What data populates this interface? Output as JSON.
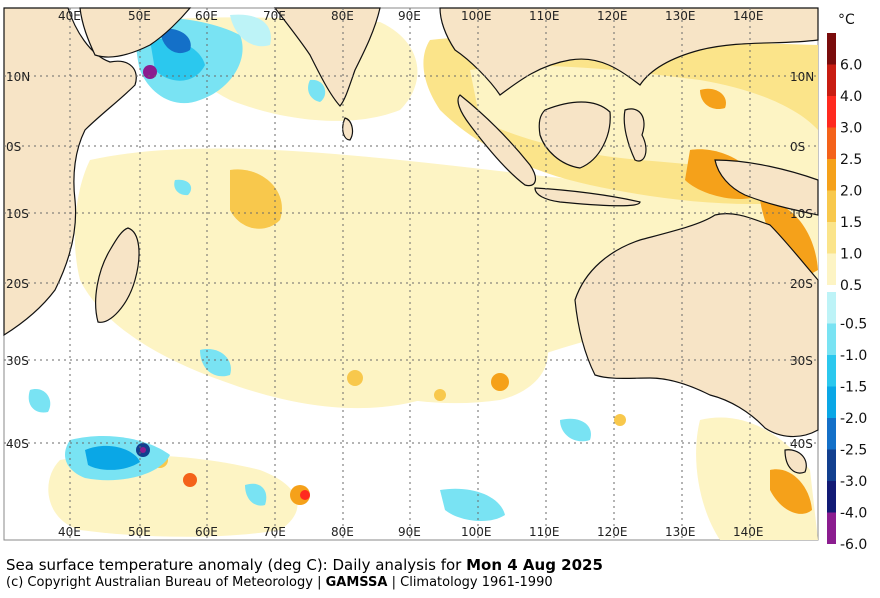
{
  "map": {
    "lon_ticks_top": [
      "40E",
      "50E",
      "60E",
      "70E",
      "80E",
      "90E",
      "100E",
      "110E",
      "120E",
      "130E",
      "140E"
    ],
    "lon_ticks_bottom": [
      "40E",
      "50E",
      "60E",
      "70E",
      "80E",
      "90E",
      "100E",
      "110E",
      "120E",
      "130E",
      "140E"
    ],
    "lat_ticks_left": [
      "10N",
      "0S",
      "10S",
      "20S",
      "30S",
      "40S"
    ],
    "lat_ticks_right": [
      "10N",
      "0S",
      "10S",
      "20S",
      "30S",
      "40S"
    ]
  },
  "colorbar": {
    "unit": "°C",
    "positive": [
      {
        "label": "6.0",
        "color": "#7a0c0c"
      },
      {
        "label": "4.0",
        "color": "#c81d12"
      },
      {
        "label": "3.0",
        "color": "#ff2a1f"
      },
      {
        "label": "2.5",
        "color": "#f4621a"
      },
      {
        "label": "2.0",
        "color": "#f5a11a"
      },
      {
        "label": "1.5",
        "color": "#f8c84c"
      },
      {
        "label": "1.0",
        "color": "#fbe48a"
      },
      {
        "label": "0.5",
        "color": "#fdf4c4"
      }
    ],
    "negative": [
      {
        "label": "-0.5",
        "color": "#bdf3f7"
      },
      {
        "label": "-1.0",
        "color": "#79e3f3"
      },
      {
        "label": "-1.5",
        "color": "#2bc8ee"
      },
      {
        "label": "-2.0",
        "color": "#0aa7e6"
      },
      {
        "label": "-2.5",
        "color": "#1470c8"
      },
      {
        "label": "-3.0",
        "color": "#123f8f"
      },
      {
        "label": "-4.0",
        "color": "#121a75"
      },
      {
        "label": "-6.0",
        "color": "#8b1d8f"
      }
    ]
  },
  "caption": {
    "line1_text": "Sea surface temperature anomaly (deg C): Daily analysis for ",
    "line1_date": "Mon 4 Aug 2025",
    "line2_prefix": "(c) Copyright Australian Bureau of Meteorology | ",
    "line2_bold": "GAMSSA",
    "line2_suffix": " | Climatology 1961-1990"
  }
}
